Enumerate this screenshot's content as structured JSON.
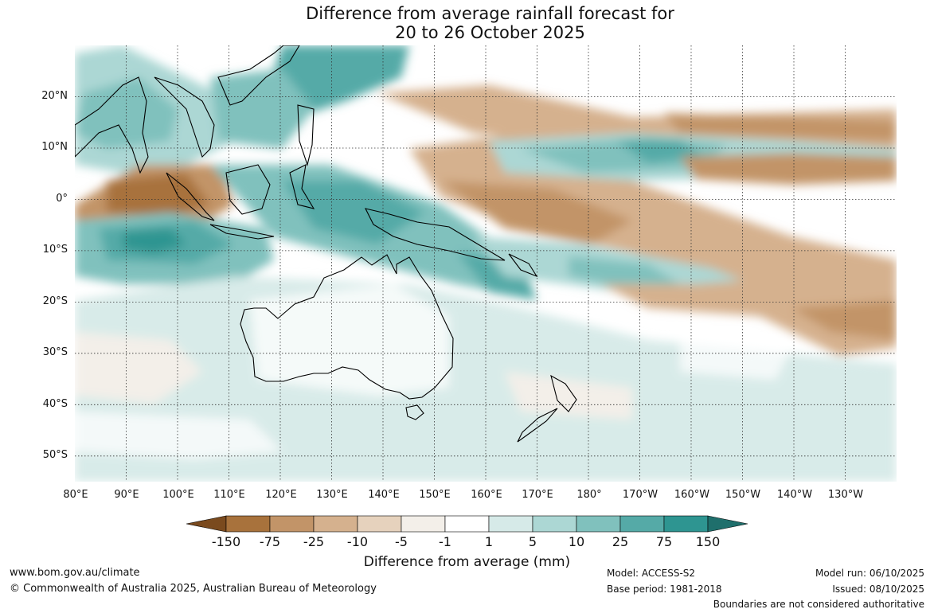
{
  "title": {
    "line1": "Difference from average rainfall forecast for",
    "line2": "20 to 26 October 2025"
  },
  "map": {
    "lon_range": [
      80,
      240
    ],
    "lat_range": [
      -55,
      30
    ],
    "lat_labels": [
      "20°N",
      "10°N",
      "0°",
      "10°S",
      "20°S",
      "30°S",
      "40°S",
      "50°S"
    ],
    "lon_labels": [
      "80°E",
      "90°E",
      "100°E",
      "110°E",
      "120°E",
      "130°E",
      "140°E",
      "150°E",
      "160°E",
      "170°E",
      "180°",
      "170°W",
      "160°W",
      "150°W",
      "140°W",
      "130°W"
    ]
  },
  "colorbar": {
    "title": "Difference from average (mm)",
    "labels": [
      "-150",
      "-75",
      "-25",
      "-10",
      "-5",
      "-1",
      "1",
      "5",
      "10",
      "25",
      "75",
      "150"
    ],
    "colors": [
      "#7a4a1e",
      "#a8723c",
      "#c29468",
      "#d5b18e",
      "#e6d2bd",
      "#f3efe9",
      "#ffffff",
      "#d6eae8",
      "#acd7d4",
      "#80c1bd",
      "#55aaa7",
      "#2e9591",
      "#1f6f6c"
    ]
  },
  "footer": {
    "url": "www.bom.gov.au/climate",
    "copyright": "© Commonwealth of Australia 2025, Australian Bureau of Meteorology",
    "model": "Model: ACCESS-S2",
    "base_period": "Base period: 1981-2018",
    "model_run": "Model run: 06/10/2025",
    "issued": "Issued: 08/10/2025",
    "disclaimer": "Boundaries are not considered authoritative"
  }
}
